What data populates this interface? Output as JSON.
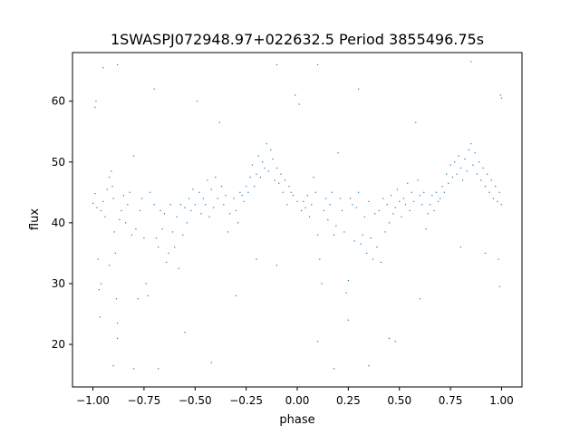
{
  "chart_data": {
    "type": "scatter",
    "title": "1SWASPJ072948.97+022632.5 Period 3855496.75s",
    "xlabel": "phase",
    "ylabel": "flux",
    "xlim": [
      -1.1,
      1.1
    ],
    "ylim": [
      13,
      68
    ],
    "xticks": [
      -1.0,
      -0.75,
      -0.5,
      -0.25,
      0.0,
      0.25,
      0.5,
      0.75,
      1.0
    ],
    "xtick_labels": [
      "−1.00",
      "−0.75",
      "−0.50",
      "−0.25",
      "0.00",
      "0.25",
      "0.50",
      "0.75",
      "1.00"
    ],
    "yticks": [
      20,
      30,
      40,
      50,
      60
    ],
    "ytick_labels": [
      "20",
      "30",
      "40",
      "50",
      "60"
    ],
    "grid": false,
    "legend": "none",
    "marker_color": "#1f77b4",
    "series": [
      {
        "values": [
          [
            -1.0,
            43.2
          ],
          [
            -0.99,
            44.8
          ],
          [
            -0.99,
            59.0
          ],
          [
            -0.985,
            60.0
          ],
          [
            -0.98,
            42.5
          ],
          [
            -0.975,
            34.0
          ],
          [
            -0.97,
            29.0
          ],
          [
            -0.965,
            24.5
          ],
          [
            -0.96,
            42.0
          ],
          [
            -0.95,
            43.5
          ],
          [
            -0.94,
            41.0
          ],
          [
            -0.93,
            45.5
          ],
          [
            -0.92,
            47.5
          ],
          [
            -0.91,
            48.5
          ],
          [
            -0.905,
            46.0
          ],
          [
            -0.9,
            44.0
          ],
          [
            -0.895,
            38.5
          ],
          [
            -0.89,
            35.0
          ],
          [
            -0.885,
            27.5
          ],
          [
            -0.88,
            21.0
          ],
          [
            -0.87,
            40.5
          ],
          [
            -0.86,
            42.0
          ],
          [
            -0.85,
            44.5
          ],
          [
            -0.84,
            40.0
          ],
          [
            -0.83,
            43.0
          ],
          [
            -0.82,
            45.0
          ],
          [
            -0.81,
            38.0
          ],
          [
            -0.8,
            51.0
          ],
          [
            -0.79,
            39.0
          ],
          [
            -0.78,
            27.5
          ],
          [
            -0.77,
            42.0
          ],
          [
            -0.76,
            44.0
          ],
          [
            -0.75,
            37.5
          ],
          [
            -0.74,
            30.0
          ],
          [
            -0.73,
            28.0
          ],
          [
            -0.72,
            45.0
          ],
          [
            -0.7,
            43.0
          ],
          [
            -0.69,
            37.5
          ],
          [
            -0.68,
            36.0
          ],
          [
            -0.67,
            42.0
          ],
          [
            -0.66,
            39.0
          ],
          [
            -0.65,
            41.5
          ],
          [
            -0.64,
            33.5
          ],
          [
            -0.63,
            35.0
          ],
          [
            -0.62,
            43.0
          ],
          [
            -0.61,
            38.5
          ],
          [
            -0.6,
            36.0
          ],
          [
            -0.59,
            41.0
          ],
          [
            -0.58,
            32.5
          ],
          [
            -0.57,
            43.0
          ],
          [
            -0.56,
            38.0
          ],
          [
            -0.55,
            42.5
          ],
          [
            -0.54,
            40.0
          ],
          [
            -0.53,
            44.0
          ],
          [
            -0.52,
            42.0
          ],
          [
            -0.51,
            45.5
          ],
          [
            -0.5,
            43.0
          ],
          [
            -0.49,
            60.0
          ],
          [
            -0.48,
            45.0
          ],
          [
            -0.47,
            41.5
          ],
          [
            -0.46,
            44.0
          ],
          [
            -0.45,
            43.0
          ],
          [
            -0.44,
            47.0
          ],
          [
            -0.43,
            41.0
          ],
          [
            -0.42,
            45.5
          ],
          [
            -0.41,
            42.5
          ],
          [
            -0.4,
            47.5
          ],
          [
            -0.39,
            44.0
          ],
          [
            -0.38,
            56.5
          ],
          [
            -0.37,
            46.0
          ],
          [
            -0.36,
            43.0
          ],
          [
            -0.35,
            44.5
          ],
          [
            -0.34,
            38.5
          ],
          [
            -0.33,
            41.5
          ],
          [
            -0.31,
            44.0
          ],
          [
            -0.3,
            42.0
          ],
          [
            -0.29,
            40.0
          ],
          [
            -0.28,
            45.0
          ],
          [
            -0.27,
            44.5
          ],
          [
            -0.26,
            43.5
          ],
          [
            -0.25,
            46.0
          ],
          [
            -0.24,
            45.0
          ],
          [
            -0.23,
            47.5
          ],
          [
            -0.22,
            49.5
          ],
          [
            -0.21,
            46.0
          ],
          [
            -0.2,
            48.0
          ],
          [
            -0.19,
            51.0
          ],
          [
            -0.18,
            47.5
          ],
          [
            -0.17,
            50.0
          ],
          [
            -0.16,
            49.0
          ],
          [
            -0.15,
            53.0
          ],
          [
            -0.14,
            48.5
          ],
          [
            -0.13,
            52.0
          ],
          [
            -0.12,
            50.5
          ],
          [
            -0.11,
            47.0
          ],
          [
            -0.1,
            49.0
          ],
          [
            -0.09,
            46.5
          ],
          [
            -0.08,
            48.0
          ],
          [
            -0.07,
            45.0
          ],
          [
            -0.06,
            47.0
          ],
          [
            -0.05,
            43.0
          ],
          [
            -0.04,
            46.0
          ],
          [
            -0.03,
            45.0
          ],
          [
            -0.02,
            44.5
          ],
          [
            -0.01,
            61.0
          ],
          [
            0.0,
            43.5
          ],
          [
            0.01,
            59.5
          ],
          [
            0.02,
            42.0
          ],
          [
            0.03,
            43.5
          ],
          [
            0.04,
            42.5
          ],
          [
            0.05,
            44.5
          ],
          [
            0.06,
            41.0
          ],
          [
            0.07,
            43.0
          ],
          [
            0.08,
            47.5
          ],
          [
            0.09,
            45.0
          ],
          [
            0.1,
            38.0
          ],
          [
            0.11,
            34.0
          ],
          [
            0.12,
            30.0
          ],
          [
            0.13,
            42.0
          ],
          [
            0.14,
            44.0
          ],
          [
            0.15,
            40.5
          ],
          [
            0.16,
            43.0
          ],
          [
            0.17,
            45.0
          ],
          [
            0.18,
            38.0
          ],
          [
            0.19,
            39.5
          ],
          [
            0.2,
            51.5
          ],
          [
            0.21,
            44.0
          ],
          [
            0.22,
            42.0
          ],
          [
            0.23,
            38.5
          ],
          [
            0.24,
            28.5
          ],
          [
            0.25,
            30.5
          ],
          [
            0.26,
            44.0
          ],
          [
            0.27,
            43.0
          ],
          [
            0.28,
            37.0
          ],
          [
            0.29,
            42.5
          ],
          [
            0.3,
            45.0
          ],
          [
            0.31,
            36.5
          ],
          [
            0.32,
            38.0
          ],
          [
            0.33,
            41.0
          ],
          [
            0.34,
            35.0
          ],
          [
            0.35,
            43.5
          ],
          [
            0.36,
            37.5
          ],
          [
            0.37,
            34.0
          ],
          [
            0.38,
            41.5
          ],
          [
            0.39,
            36.0
          ],
          [
            0.4,
            42.0
          ],
          [
            0.41,
            33.5
          ],
          [
            0.42,
            44.0
          ],
          [
            0.43,
            38.5
          ],
          [
            0.44,
            43.0
          ],
          [
            0.45,
            40.0
          ],
          [
            0.46,
            44.5
          ],
          [
            0.47,
            41.5
          ],
          [
            0.48,
            42.5
          ],
          [
            0.49,
            45.5
          ],
          [
            0.5,
            43.5
          ],
          [
            0.51,
            41.0
          ],
          [
            0.52,
            44.0
          ],
          [
            0.53,
            43.0
          ],
          [
            0.54,
            46.5
          ],
          [
            0.55,
            42.0
          ],
          [
            0.56,
            45.0
          ],
          [
            0.57,
            43.5
          ],
          [
            0.58,
            56.5
          ],
          [
            0.59,
            47.0
          ],
          [
            0.6,
            44.5
          ],
          [
            0.61,
            43.0
          ],
          [
            0.62,
            45.0
          ],
          [
            0.63,
            39.0
          ],
          [
            0.64,
            41.5
          ],
          [
            0.65,
            43.0
          ],
          [
            0.66,
            44.5
          ],
          [
            0.67,
            42.0
          ],
          [
            0.68,
            45.0
          ],
          [
            0.69,
            43.5
          ],
          [
            0.7,
            44.0
          ],
          [
            0.71,
            46.0
          ],
          [
            0.72,
            45.0
          ],
          [
            0.73,
            48.0
          ],
          [
            0.74,
            46.5
          ],
          [
            0.75,
            49.5
          ],
          [
            0.76,
            47.5
          ],
          [
            0.77,
            50.0
          ],
          [
            0.78,
            48.0
          ],
          [
            0.79,
            51.0
          ],
          [
            0.8,
            49.0
          ],
          [
            0.81,
            47.0
          ],
          [
            0.82,
            50.5
          ],
          [
            0.83,
            48.5
          ],
          [
            0.84,
            52.0
          ],
          [
            0.85,
            53.0
          ],
          [
            0.86,
            49.5
          ],
          [
            0.87,
            51.5
          ],
          [
            0.88,
            48.0
          ],
          [
            0.89,
            50.0
          ],
          [
            0.9,
            47.0
          ],
          [
            0.91,
            49.0
          ],
          [
            0.92,
            46.0
          ],
          [
            0.93,
            48.0
          ],
          [
            0.94,
            45.0
          ],
          [
            0.95,
            47.0
          ],
          [
            0.96,
            44.0
          ],
          [
            0.97,
            46.0
          ],
          [
            0.98,
            43.5
          ],
          [
            0.99,
            45.0
          ],
          [
            1.0,
            43.0
          ],
          [
            1.0,
            60.5
          ],
          [
            0.995,
            61.0
          ],
          [
            0.99,
            29.5
          ],
          [
            0.985,
            34.0
          ],
          [
            -0.96,
            30.0
          ],
          [
            -0.92,
            33.0
          ],
          [
            -0.9,
            16.5
          ],
          [
            -0.88,
            23.5
          ],
          [
            -0.8,
            16.0
          ],
          [
            -0.68,
            16.0
          ],
          [
            -0.55,
            22.0
          ],
          [
            -0.42,
            17.0
          ],
          [
            -0.3,
            28.0
          ],
          [
            -0.2,
            34.0
          ],
          [
            -0.1,
            33.0
          ],
          [
            0.1,
            20.5
          ],
          [
            0.18,
            16.0
          ],
          [
            0.25,
            24.0
          ],
          [
            0.35,
            16.5
          ],
          [
            0.45,
            21.0
          ],
          [
            0.48,
            20.5
          ],
          [
            0.6,
            27.5
          ],
          [
            0.8,
            36.0
          ],
          [
            0.92,
            35.0
          ],
          [
            -0.95,
            65.5
          ],
          [
            -0.88,
            66.0
          ],
          [
            -0.7,
            62.0
          ],
          [
            -0.1,
            66.0
          ],
          [
            0.1,
            66.0
          ],
          [
            0.3,
            62.0
          ],
          [
            0.85,
            66.5
          ]
        ]
      }
    ]
  }
}
